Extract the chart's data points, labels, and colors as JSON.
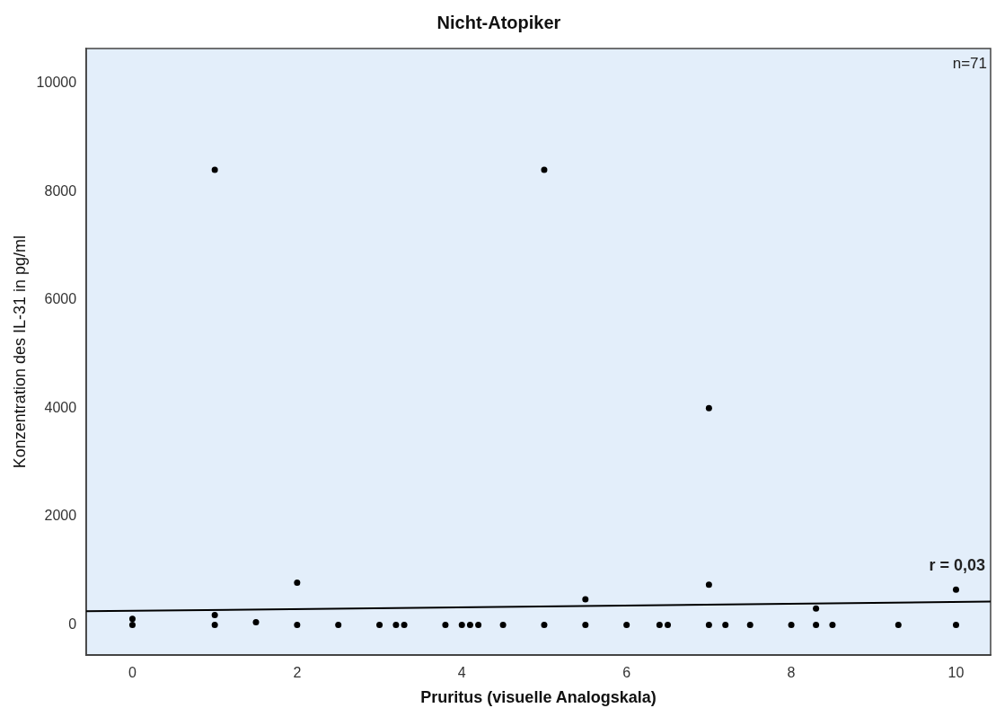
{
  "chart_data": {
    "type": "scatter",
    "title": "Nicht-Atopiker",
    "xlabel": "Pruritus (visuelle Analogskala)",
    "ylabel": "Konzentration des IL-31 in pg/ml",
    "xlim": [
      -0.56,
      10.42
    ],
    "ylim": [
      -560,
      10640
    ],
    "xticks": [
      0,
      2,
      4,
      6,
      8,
      10
    ],
    "yticks": [
      0,
      2000,
      4000,
      6000,
      8000,
      10000
    ],
    "grid": false,
    "legend": false,
    "marker": "circle",
    "series": [
      {
        "color": "#000000",
        "x": [
          0,
          0,
          1,
          1,
          1,
          1.5,
          2,
          2,
          2.5,
          3,
          3.2,
          3.3,
          3.8,
          4,
          4.1,
          4.2,
          4.5,
          5,
          5,
          5.5,
          5.5,
          6,
          6.4,
          6.5,
          7,
          7,
          7,
          7.2,
          7.5,
          8,
          8.3,
          8.3,
          8.5,
          9.3,
          10,
          10
        ],
        "values": [
          110,
          0,
          8400,
          180,
          0,
          50,
          780,
          0,
          0,
          0,
          0,
          0,
          0,
          0,
          0,
          0,
          0,
          8400,
          0,
          470,
          0,
          0,
          0,
          0,
          4000,
          740,
          0,
          0,
          0,
          0,
          300,
          0,
          0,
          0,
          650,
          0
        ]
      },
      {
        "type": "line",
        "color": "#000000",
        "marker": "none",
        "x": [
          -0.56,
          10.42
        ],
        "values": [
          250,
          430
        ]
      }
    ],
    "annotations": [
      "n=71",
      "r = 0,03"
    ]
  }
}
